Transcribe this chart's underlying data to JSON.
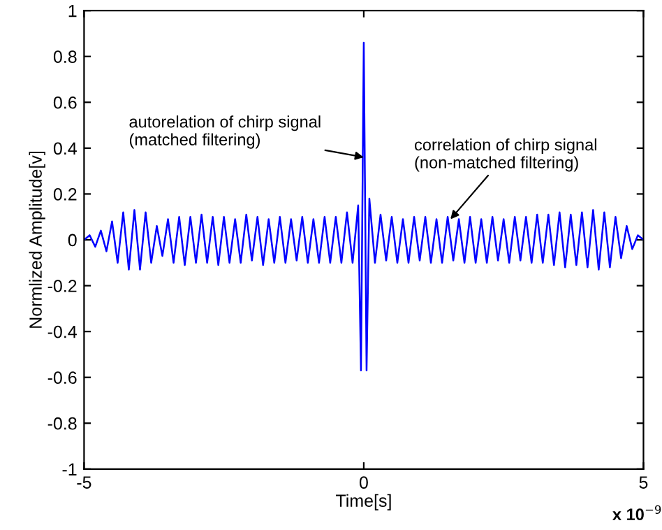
{
  "chart_data": {
    "type": "line",
    "xlabel": "Time[s]",
    "ylabel": "Normlized Amplitude[v]",
    "xlim": [
      -5,
      5
    ],
    "xticks": [
      -5,
      0,
      5
    ],
    "ylim": [
      -1,
      1
    ],
    "yticks": [
      -1,
      -0.8,
      -0.6,
      -0.4,
      -0.2,
      0,
      0.2,
      0.4,
      0.6,
      0.8,
      1
    ],
    "grid": false,
    "legend": false,
    "annotations": [
      {
        "text": "autorelation of chirp signal\n(matched filtering)",
        "x": 0,
        "y": 0.36
      },
      {
        "text": "correlation of chirp signal\n(non-matched filtering)",
        "x": 1.55,
        "y": 0.09
      },
      "x 10$^{−9}$"
    ],
    "series": [
      {
        "color": "#0000ff",
        "x": [
          -5,
          -4.9,
          -4.8,
          -4.7,
          -4.6,
          -4.5,
          -4.4,
          -4.3,
          -4.2,
          -4.1,
          -4,
          -3.9,
          -3.8,
          -3.7,
          -3.6,
          -3.5,
          -3.4,
          -3.3,
          -3.2,
          -3.1,
          -3,
          -2.9,
          -2.8,
          -2.7,
          -2.6,
          -2.5,
          -2.4,
          -2.3,
          -2.2,
          -2.1,
          -2,
          -1.9,
          -1.8,
          -1.7,
          -1.6,
          -1.5,
          -1.4,
          -1.3,
          -1.2,
          -1.1,
          -1,
          -0.9,
          -0.8,
          -0.7,
          -0.6,
          -0.5,
          -0.4,
          -0.3,
          -0.2,
          -0.1,
          -0.05,
          0,
          0.05,
          0.1,
          0.2,
          0.3,
          0.4,
          0.5,
          0.6,
          0.7,
          0.8,
          0.9,
          1,
          1.1,
          1.2,
          1.3,
          1.4,
          1.5,
          1.6,
          1.7,
          1.8,
          1.9,
          2,
          2.1,
          2.2,
          2.3,
          2.4,
          2.5,
          2.6,
          2.7,
          2.8,
          2.9,
          3,
          3.1,
          3.2,
          3.3,
          3.4,
          3.5,
          3.6,
          3.7,
          3.8,
          3.9,
          4,
          4.1,
          4.2,
          4.3,
          4.4,
          4.5,
          4.6,
          4.7,
          4.8,
          4.9,
          5
        ],
        "values": [
          0,
          0.02,
          -0.03,
          0.04,
          -0.05,
          0.08,
          -0.1,
          0.12,
          -0.13,
          0.13,
          -0.13,
          0.12,
          -0.1,
          0.06,
          -0.07,
          0.09,
          -0.1,
          0.1,
          -0.11,
          0.1,
          -0.1,
          0.11,
          -0.1,
          0.1,
          -0.11,
          0.1,
          -0.1,
          0.09,
          -0.1,
          0.11,
          -0.09,
          0.1,
          -0.11,
          0.09,
          -0.1,
          0.1,
          -0.1,
          0.09,
          -0.09,
          0.1,
          -0.1,
          0.09,
          -0.1,
          0.1,
          -0.1,
          0.1,
          -0.1,
          0.12,
          -0.1,
          0.15,
          -0.57,
          0.86,
          -0.57,
          0.18,
          -0.1,
          0.11,
          -0.09,
          0.1,
          -0.1,
          0.09,
          -0.1,
          0.1,
          -0.09,
          0.1,
          -0.1,
          0.09,
          -0.1,
          0.1,
          -0.09,
          0.09,
          -0.1,
          0.1,
          -0.1,
          0.09,
          -0.1,
          0.1,
          -0.09,
          0.09,
          -0.1,
          0.1,
          -0.09,
          0.1,
          -0.1,
          0.11,
          -0.1,
          0.11,
          -0.11,
          0.12,
          -0.12,
          0.11,
          -0.11,
          0.12,
          -0.12,
          0.13,
          -0.13,
          0.12,
          -0.12,
          0.1,
          -0.08,
          0.06,
          -0.04,
          0.02,
          0
        ]
      }
    ]
  }
}
